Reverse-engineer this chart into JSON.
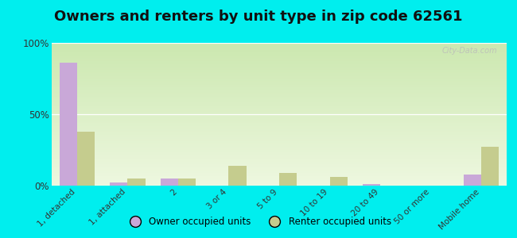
{
  "title": "Owners and renters by unit type in zip code 62561",
  "categories": [
    "1, detached",
    "1, attached",
    "2",
    "3 or 4",
    "5 to 9",
    "10 to 19",
    "20 to 49",
    "50 or more",
    "Mobile home"
  ],
  "owner_values": [
    86,
    2,
    5,
    0,
    0,
    0,
    1,
    0,
    8
  ],
  "renter_values": [
    38,
    5,
    5,
    14,
    9,
    6,
    0,
    0,
    27
  ],
  "owner_color": "#c9a8d8",
  "renter_color": "#c5cc8e",
  "background_color": "#00eeee",
  "ylim": [
    0,
    100
  ],
  "yticks": [
    0,
    50,
    100
  ],
  "ytick_labels": [
    "0%",
    "50%",
    "100%"
  ],
  "legend_owner": "Owner occupied units",
  "legend_renter": "Renter occupied units",
  "title_fontsize": 13,
  "bar_width": 0.35
}
